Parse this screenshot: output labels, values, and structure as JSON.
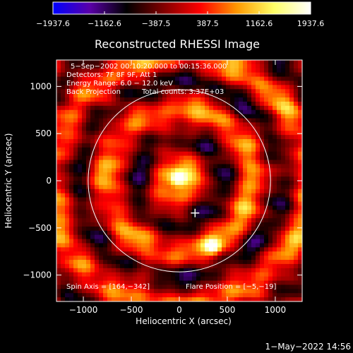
{
  "chart_data": {
    "type": "heatmap",
    "title": "Reconstructed RHESSI Image",
    "xlabel": "Heliocentric X (arcsec)",
    "ylabel": "Heliocentric Y (arcsec)",
    "xlim": [
      -1280,
      1280
    ],
    "ylim": [
      -1280,
      1280
    ],
    "x_ticks": [
      -1000,
      -500,
      0,
      500,
      1000
    ],
    "y_ticks": [
      -1000,
      -500,
      0,
      500,
      1000
    ],
    "x_tick_labels": [
      "−1000",
      "−500",
      "0",
      "500",
      "1000"
    ],
    "y_tick_labels": [
      "−1000",
      "−500",
      "0",
      "500",
      "1000"
    ],
    "colorbar": {
      "range": [
        -1937.6,
        1937.6
      ],
      "ticks": [
        -1937.6,
        -1162.6,
        -387.5,
        387.5,
        1162.6,
        1937.6
      ],
      "tick_labels": [
        "−1937.6",
        "−1162.6",
        "−387.5",
        "387.5",
        "1162.6",
        "1937.6"
      ],
      "colormap": [
        "#0000ff",
        "#5a00a8",
        "#000000",
        "#800000",
        "#ff0000",
        "#ff9900",
        "#ffff66",
        "#ffffff"
      ]
    },
    "annotations": [
      "5−Sep−2002 00:10:20.000 to 00:15:36.000",
      "Detectors: 7F 8F 9F, Att 1",
      "Energy Range: 6.0 − 12.0 keV",
      "Back Projection",
      "Total counts: 3.37E+03"
    ],
    "spin_axis_label": "Spin Axis = [164,−342]",
    "flare_position_label": "Flare Position = [−5,−19]",
    "solar_limb_radius_arcsec": 950,
    "flare_marker": [
      164,
      -342
    ],
    "sources": [
      {
        "x": -10,
        "y": 20,
        "peak": 1937.6
      },
      {
        "x": 350,
        "y": -700,
        "peak": 1300
      }
    ],
    "grid": false,
    "legend": "colorbar-top"
  },
  "footer": {
    "date": "1−May−2022 14:56"
  }
}
